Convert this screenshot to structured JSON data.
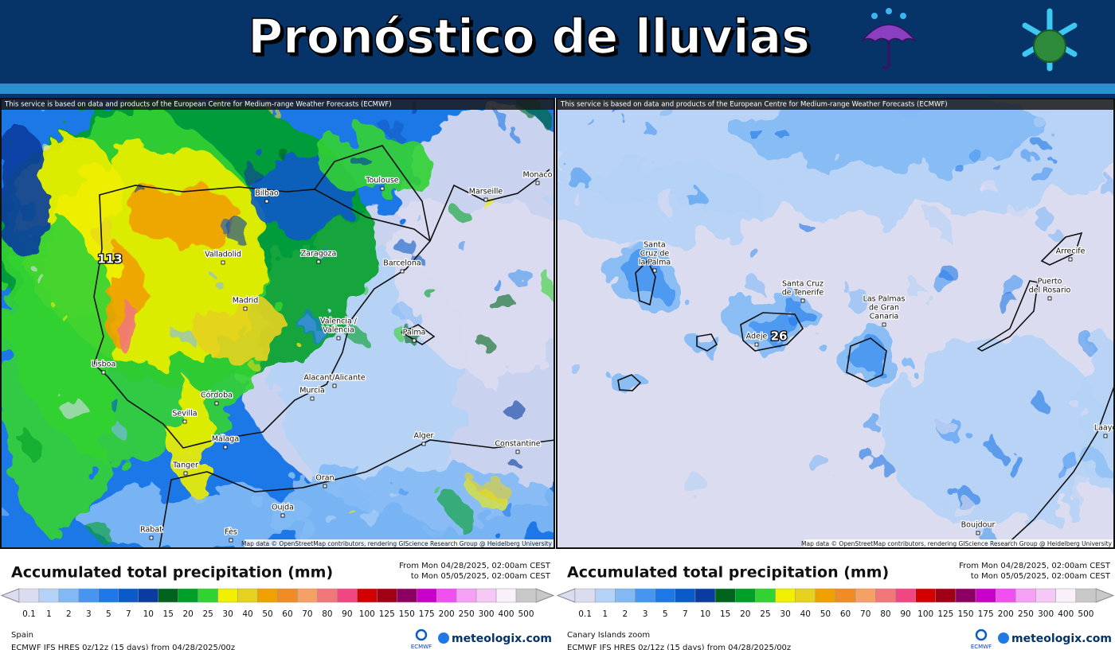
{
  "header": {
    "title": "Pronóstico de lluvias"
  },
  "legend": {
    "title": "Accumulated total precipitation (mm)",
    "values": [
      0.1,
      1,
      2,
      3,
      5,
      7,
      10,
      15,
      20,
      25,
      30,
      40,
      50,
      60,
      70,
      80,
      90,
      100,
      125,
      150,
      175,
      200,
      250,
      300,
      400,
      500
    ],
    "colors": [
      "#dcdcf0",
      "#b4d2f5",
      "#82b9f5",
      "#4696f0",
      "#1e78e6",
      "#0a5ac8",
      "#0a3ca0",
      "#00641e",
      "#00a028",
      "#32d232",
      "#f0f000",
      "#e6d21e",
      "#f0a000",
      "#f08c28",
      "#f5a064",
      "#f07878",
      "#f04682",
      "#d20000",
      "#a00014",
      "#8c0064",
      "#c800c8",
      "#f050f0",
      "#f5a0f5",
      "#f5c8f5",
      "#faf0fa",
      "#c8c8c8"
    ]
  },
  "panels": [
    {
      "attribution": "This service is based on data and products of the European Centre for Medium-range Weather Forecasts (ECMWF)",
      "map_credit": "Map data © OpenStreetMap contributors, rendering GIScience Research Group @ Heidelberg University",
      "period_from": "From Mon 04/28/2025, 02:00am CEST",
      "period_to": "to Mon 05/05/2025, 02:00am CEST",
      "region": "Spain",
      "model": "ECMWF IFS HRES 0z/12z (15 days) from 04/28/2025/00z",
      "brand": "meteologix.com",
      "ecmwf": "ECMWF",
      "max_label": "113",
      "places": [
        [
          "Bilbao"
        ],
        [
          "Toulouse"
        ],
        [
          "Marseille"
        ],
        [
          "Monaco"
        ],
        [
          "Valladolid"
        ],
        [
          "Zaragoza"
        ],
        [
          "Barcelona"
        ],
        [
          "Madrid"
        ],
        [
          "Valencia /",
          "València"
        ],
        [
          "Palma"
        ],
        [
          "Lisboa"
        ],
        [
          "Alacant/Alicante"
        ],
        [
          "Murcia"
        ],
        [
          "Córdoba"
        ],
        [
          "Sevilla"
        ],
        [
          "Málaga"
        ],
        [
          "Tanger"
        ],
        [
          "Alger"
        ],
        [
          "Constantine"
        ],
        [
          "Oran"
        ],
        [
          "Oujda"
        ],
        [
          "Rabat"
        ],
        [
          "Fès"
        ]
      ]
    },
    {
      "attribution": "This service is based on data and products of the European Centre for Medium-range Weather Forecasts (ECMWF)",
      "map_credit": "Map data © OpenStreetMap contributors, rendering GIScience Research Group @ Heidelberg University",
      "period_from": "From Mon 04/28/2025, 02:00am CEST",
      "period_to": "to Mon 05/05/2025, 02:00am CEST",
      "region": "Canary Islands zoom",
      "model": "ECMWF IFS HRES 0z/12z (15 days) from 04/28/2025/00z",
      "brand": "meteologix.com",
      "ecmwf": "ECMWF",
      "max_label": "26",
      "places": [
        [
          "Santa",
          "Cruz de",
          "la Palma"
        ],
        [
          "Santa Cruz",
          "de Tenerife"
        ],
        [
          "Adeje"
        ],
        [
          "Las Palmas",
          "de Gran",
          "Canaria"
        ],
        [
          "Arrecife"
        ],
        [
          "Puerto",
          "del Rosario"
        ],
        [
          "Boujdour"
        ],
        [
          "Laayo"
        ]
      ]
    }
  ]
}
